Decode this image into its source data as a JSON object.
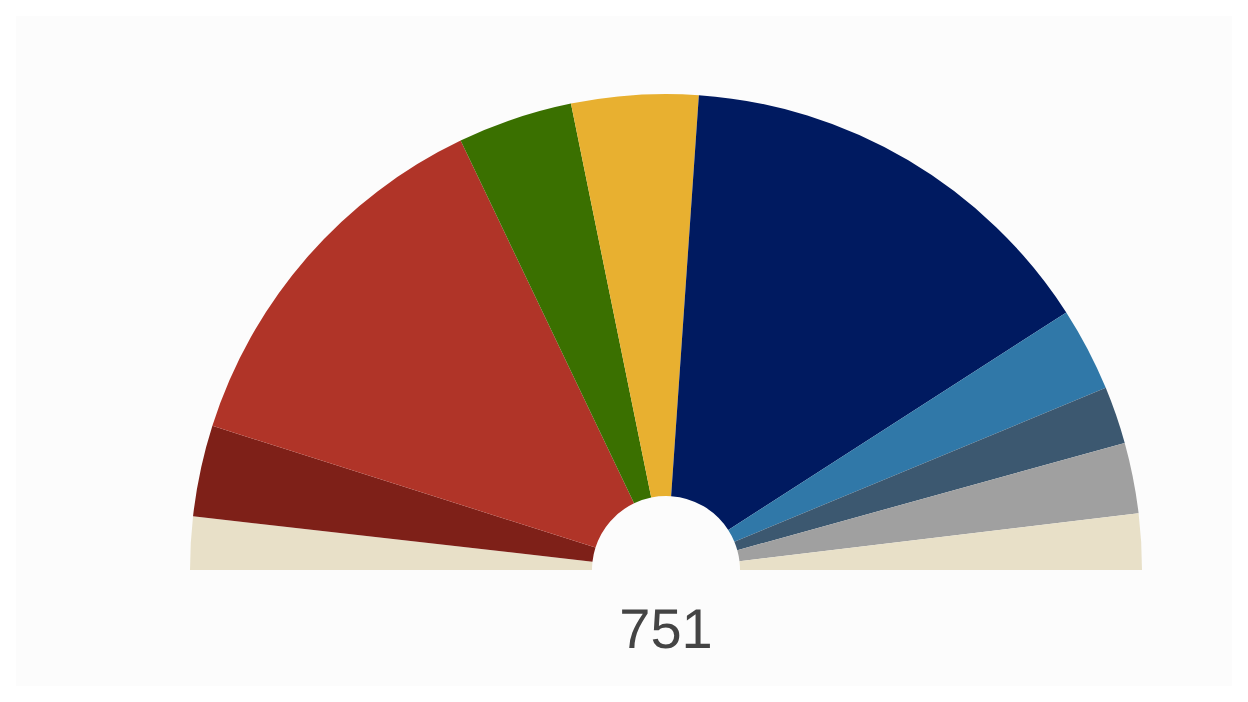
{
  "chart_data": {
    "type": "donut",
    "categories": [
      null,
      null,
      null,
      null,
      null,
      null,
      null,
      null,
      null,
      null
    ],
    "values": [
      3.6,
      6.2,
      26.0,
      7.8,
      8.6,
      29.6,
      5.7,
      3.9,
      4.8,
      3.8
    ],
    "colors": [
      "#e8e0c8",
      "#7e2018",
      "#b03428",
      "#3a7000",
      "#e8b030",
      "#001a60",
      "#3078a8",
      "#3c5870",
      "#a0a0a0",
      "#e8e0c8"
    ],
    "annotations": [
      "751"
    ]
  }
}
